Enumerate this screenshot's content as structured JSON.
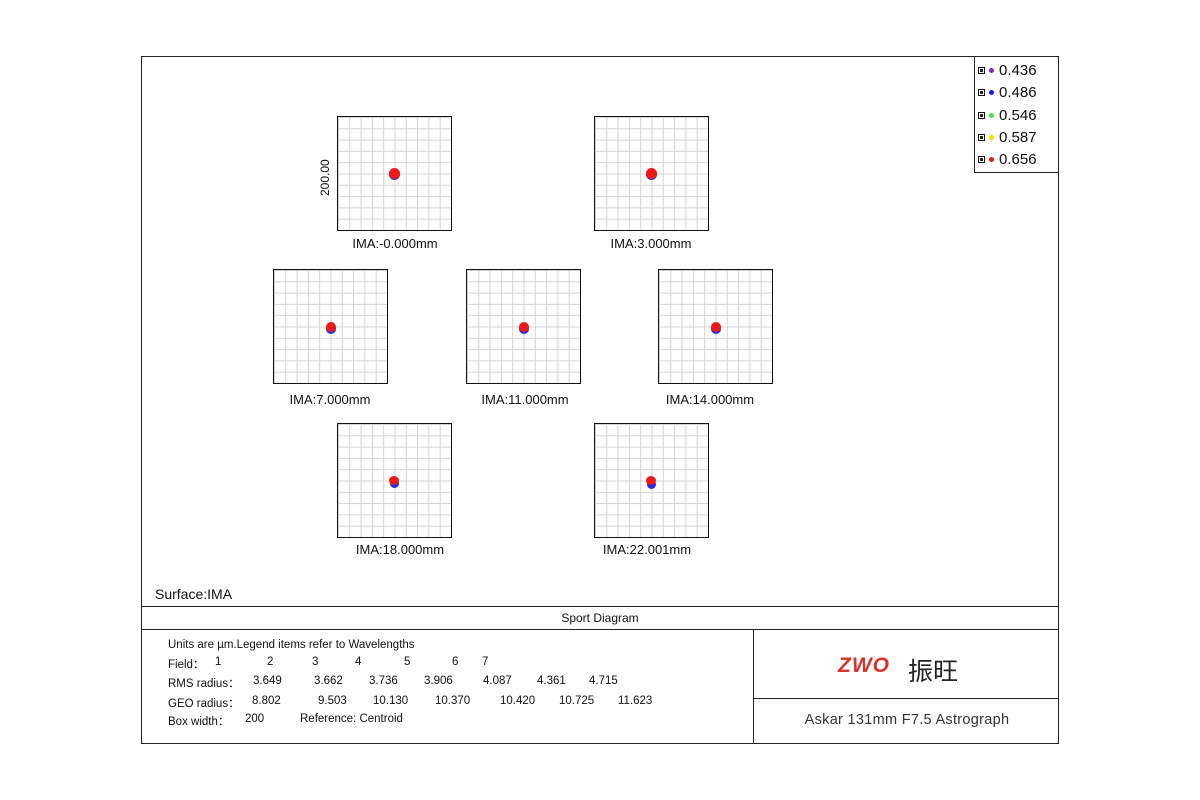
{
  "legend": {
    "items": [
      {
        "label": "0.436",
        "color": "#7a2bd6"
      },
      {
        "label": "0.486",
        "color": "#1717e8"
      },
      {
        "label": "0.546",
        "color": "#44e044"
      },
      {
        "label": "0.587",
        "color": "#e6e600"
      },
      {
        "label": "0.656",
        "color": "#e81717"
      }
    ]
  },
  "axis": {
    "scale_label": "200.00"
  },
  "fields": [
    {
      "label": "IMA:-0.000mm"
    },
    {
      "label": "IMA:3.000mm"
    },
    {
      "label": "IMA:7.000mm"
    },
    {
      "label": "IMA:11.000mm"
    },
    {
      "label": "IMA:14.000mm"
    },
    {
      "label": "IMA:18.000mm"
    },
    {
      "label": "IMA:22.001mm"
    }
  ],
  "surface": "Surface:IMA",
  "diagram_title": "Sport Diagram",
  "info": {
    "units": "Units are µm.Legend items refer to Wavelengths",
    "field_label": "Field：",
    "field_values": [
      "1",
      "2",
      "3",
      "4",
      "5",
      "6",
      "7"
    ],
    "rms_label": "RMS radius：",
    "rms_values": [
      "3.649",
      "3.662",
      "3.736",
      "3.906",
      "4.087",
      "4.361",
      "4.715"
    ],
    "geo_label": "GEO radius：",
    "geo_values": [
      "8.802",
      "9.503",
      "10.130",
      "10.370",
      "10.420",
      "10.725",
      "11.623"
    ],
    "box_width_label": "Box width：",
    "box_width_value": "200",
    "reference": "Reference: Centroid"
  },
  "logo": {
    "en": "ZWO",
    "cn": "振旺"
  },
  "product": "Askar 131mm F7.5 Astrograph"
}
